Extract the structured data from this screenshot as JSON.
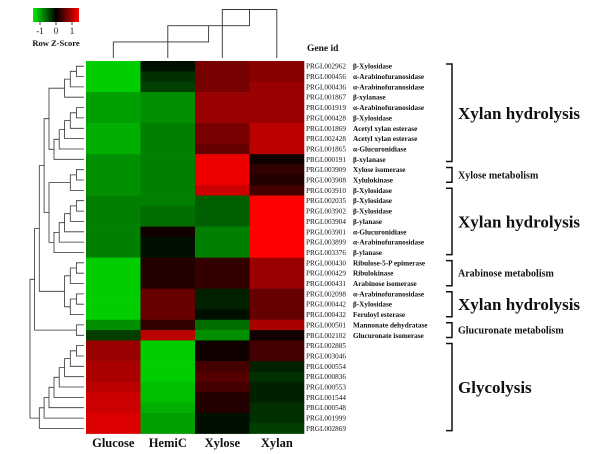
{
  "chart_data": {
    "type": "heatmap",
    "title": "",
    "columns": [
      "Glucose",
      "HemiC",
      "Xylose",
      "Xylan"
    ],
    "gene_id_header": "Gene id",
    "color_key": {
      "title": "Row Z-Score",
      "ticks": [
        "-1",
        "0",
        "1"
      ],
      "range": [
        -1.5,
        1.5
      ],
      "low_color": "#00ee00",
      "mid_color": "#000000",
      "high_color": "#ff0000"
    },
    "rows": [
      {
        "id": "PRGL002962",
        "name": "β-Xylosidase",
        "z": [
          -1.3,
          -0.1,
          0.7,
          0.8
        ]
      },
      {
        "id": "PRGL000456",
        "name": "α-Arabinofuranosidase",
        "z": [
          -1.3,
          -0.3,
          0.7,
          0.8
        ]
      },
      {
        "id": "PRGL000436",
        "name": "α-Arabinofuranosidase",
        "z": [
          -1.3,
          -0.4,
          0.7,
          0.9
        ]
      },
      {
        "id": "PRGL001867",
        "name": "β-xylanase",
        "z": [
          -1.0,
          -0.9,
          0.9,
          0.9
        ]
      },
      {
        "id": "PRGL001919",
        "name": "α-Arabinofuranosidase",
        "z": [
          -1.0,
          -0.9,
          0.9,
          0.9
        ]
      },
      {
        "id": "PRGL000428",
        "name": "β-Xylosidase",
        "z": [
          -1.0,
          -0.9,
          0.9,
          0.9
        ]
      },
      {
        "id": "PRGL001869",
        "name": "Acetyl xylan esterase",
        "z": [
          -1.1,
          -0.8,
          0.7,
          1.1
        ]
      },
      {
        "id": "PRGL002428",
        "name": "Acetyl xylan esterase",
        "z": [
          -1.1,
          -0.8,
          0.7,
          1.1
        ]
      },
      {
        "id": "PRGL001865",
        "name": "α-Glucuronidiase",
        "z": [
          -1.1,
          -0.8,
          0.6,
          1.1
        ]
      },
      {
        "id": "PRGL000191",
        "name": "β-xylanase",
        "z": [
          -0.9,
          -0.8,
          1.4,
          0.1
        ]
      },
      {
        "id": "PRGL003909",
        "name": "Xylose isomerase",
        "z": [
          -0.9,
          -0.8,
          1.4,
          0.3
        ]
      },
      {
        "id": "PRGL003908",
        "name": "Xylulokinase",
        "z": [
          -0.9,
          -0.8,
          1.4,
          0.2
        ]
      },
      {
        "id": "PRGL003910",
        "name": "β-Xylosidase",
        "z": [
          -0.9,
          -0.8,
          1.2,
          0.4
        ]
      },
      {
        "id": "PRGL002035",
        "name": "β-Xylosidase",
        "z": [
          -0.8,
          -0.8,
          -0.6,
          1.5
        ]
      },
      {
        "id": "PRGL003902",
        "name": "β-Xylosidase",
        "z": [
          -0.8,
          -0.7,
          -0.6,
          1.5
        ]
      },
      {
        "id": "PRGL003904",
        "name": "β-ylanase",
        "z": [
          -0.8,
          -0.7,
          -0.6,
          1.5
        ]
      },
      {
        "id": "PRGL003901",
        "name": "α-Glucuronidiase",
        "z": [
          -0.8,
          0.1,
          -0.8,
          1.5
        ]
      },
      {
        "id": "PRGL003899",
        "name": "α-Arabinofuranosidase",
        "z": [
          -0.8,
          -0.1,
          -0.8,
          1.5
        ]
      },
      {
        "id": "PRGL003376",
        "name": "β-ylanase",
        "z": [
          -0.8,
          -0.1,
          -0.8,
          1.5
        ]
      },
      {
        "id": "PRGL000430",
        "name": "Ribulose-5-P epimerase",
        "z": [
          -1.3,
          0.2,
          0.3,
          0.9
        ]
      },
      {
        "id": "PRGL000429",
        "name": "Ribulokinase",
        "z": [
          -1.3,
          0.2,
          0.3,
          0.9
        ]
      },
      {
        "id": "PRGL000431",
        "name": "Arabinose isomerase",
        "z": [
          -1.3,
          0.2,
          0.3,
          0.9
        ]
      },
      {
        "id": "PRGL002098",
        "name": "α-Arabinofuranosidase",
        "z": [
          -1.3,
          0.6,
          -0.2,
          0.6
        ]
      },
      {
        "id": "PRGL000442",
        "name": "β-Xylosidase",
        "z": [
          -1.3,
          0.6,
          -0.2,
          0.6
        ]
      },
      {
        "id": "PRGL000432",
        "name": "Feruloyl esterase",
        "z": [
          -1.3,
          0.6,
          -0.1,
          0.6
        ]
      },
      {
        "id": "PRGL000501",
        "name": "Mannonate dehydratase",
        "z": [
          -0.9,
          0.3,
          -0.7,
          1.0
        ]
      },
      {
        "id": "PRGL002102",
        "name": "Glucuronate isomerase",
        "z": [
          -0.4,
          1.1,
          -0.9,
          0.1
        ]
      },
      {
        "id": "PRGL002885",
        "name": "",
        "z": [
          0.9,
          -1.3,
          0.1,
          0.4
        ]
      },
      {
        "id": "PRGL003046",
        "name": "",
        "z": [
          0.9,
          -1.3,
          0.1,
          0.4
        ]
      },
      {
        "id": "PRGL000554",
        "name": "",
        "z": [
          1.0,
          -1.3,
          0.4,
          -0.2
        ]
      },
      {
        "id": "PRGL000836",
        "name": "",
        "z": [
          1.0,
          -1.3,
          0.5,
          -0.3
        ]
      },
      {
        "id": "PRGL000553",
        "name": "",
        "z": [
          1.1,
          -1.2,
          0.4,
          -0.2
        ]
      },
      {
        "id": "PRGL001544",
        "name": "",
        "z": [
          1.2,
          -1.2,
          0.2,
          -0.2
        ]
      },
      {
        "id": "PRGL000548",
        "name": "",
        "z": [
          1.2,
          -1.1,
          0.2,
          -0.3
        ]
      },
      {
        "id": "PRGL001999",
        "name": "",
        "z": [
          1.3,
          -1.0,
          -0.1,
          -0.3
        ]
      },
      {
        "id": "PRGL002869",
        "name": "",
        "z": [
          1.3,
          -1.0,
          -0.1,
          -0.4
        ]
      }
    ],
    "groups": [
      {
        "label": "Xylan hydrolysis",
        "first_row": 0,
        "last_row": 9,
        "size": "big"
      },
      {
        "label": "Xylose metabolism",
        "first_row": 10,
        "last_row": 11,
        "size": "small"
      },
      {
        "label": "Xylan hydrolysis",
        "first_row": 12,
        "last_row": 18,
        "size": "big"
      },
      {
        "label": "Arabinose metabolism",
        "first_row": 19,
        "last_row": 21,
        "size": "small"
      },
      {
        "label": "Xylan hydrolysis",
        "first_row": 22,
        "last_row": 24,
        "size": "big"
      },
      {
        "label": "Glucuronate metabolism",
        "first_row": 25,
        "last_row": 26,
        "size": "small"
      },
      {
        "label": "Glycolysis",
        "first_row": 27,
        "last_row": 35,
        "size": "big"
      }
    ],
    "column_dendrogram": [
      [
        2,
        3
      ],
      [
        1,
        "n0"
      ],
      [
        0,
        "n1"
      ]
    ]
  }
}
